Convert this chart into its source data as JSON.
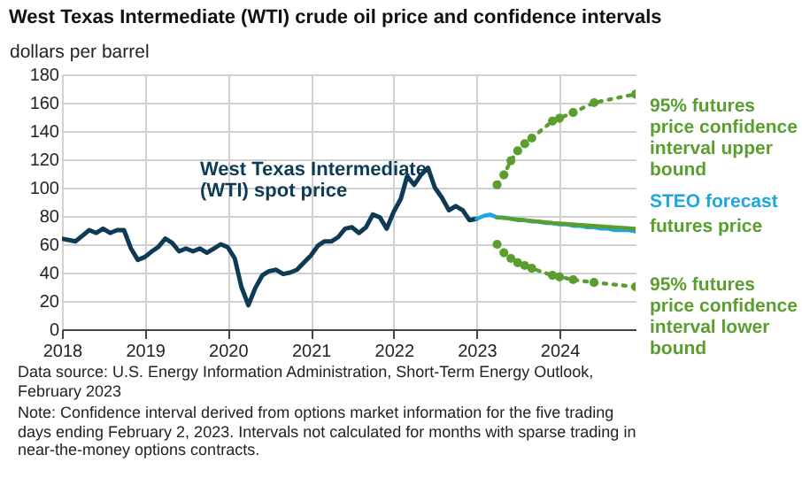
{
  "chart_data": {
    "type": "line",
    "title": "West Texas Intermediate (WTI) crude oil price and confidence intervals",
    "ylabel": "dollars per barrel",
    "xlim": [
      "2018-01",
      "2024-12"
    ],
    "xticks": [
      "2018",
      "2019",
      "2020",
      "2021",
      "2022",
      "2023",
      "2024"
    ],
    "ylim": [
      0,
      180
    ],
    "yticks": [
      0,
      20,
      40,
      60,
      80,
      100,
      120,
      140,
      160,
      180
    ],
    "grid": true,
    "series": [
      {
        "name": "West Texas Intermediate (WTI) spot price",
        "color": "#0d3b55",
        "x": [
          "2018-01",
          "2018-02",
          "2018-03",
          "2018-04",
          "2018-05",
          "2018-06",
          "2018-07",
          "2018-08",
          "2018-09",
          "2018-10",
          "2018-11",
          "2018-12",
          "2019-01",
          "2019-02",
          "2019-03",
          "2019-04",
          "2019-05",
          "2019-06",
          "2019-07",
          "2019-08",
          "2019-09",
          "2019-10",
          "2019-11",
          "2019-12",
          "2020-01",
          "2020-02",
          "2020-03",
          "2020-04",
          "2020-05",
          "2020-06",
          "2020-07",
          "2020-08",
          "2020-09",
          "2020-10",
          "2020-11",
          "2020-12",
          "2021-01",
          "2021-02",
          "2021-03",
          "2021-04",
          "2021-05",
          "2021-06",
          "2021-07",
          "2021-08",
          "2021-09",
          "2021-10",
          "2021-11",
          "2021-12",
          "2022-01",
          "2022-02",
          "2022-03",
          "2022-04",
          "2022-05",
          "2022-06",
          "2022-07",
          "2022-08",
          "2022-09",
          "2022-10",
          "2022-11",
          "2022-12",
          "2023-01"
        ],
        "values": [
          64,
          63,
          62,
          66,
          70,
          68,
          71,
          68,
          70,
          70,
          57,
          49,
          51,
          55,
          58,
          64,
          61,
          55,
          57,
          55,
          57,
          54,
          57,
          60,
          58,
          50,
          30,
          17,
          29,
          38,
          41,
          42,
          39,
          40,
          42,
          47,
          52,
          59,
          62,
          62,
          65,
          71,
          72,
          68,
          72,
          81,
          79,
          71,
          83,
          92,
          108,
          102,
          109,
          114,
          100,
          93,
          84,
          87,
          84,
          77,
          78
        ]
      },
      {
        "name": "STEO forecast",
        "color": "#1ca7e0",
        "x": [
          "2023-01",
          "2023-02",
          "2023-03",
          "2023-04",
          "2023-05",
          "2023-06",
          "2023-07",
          "2023-08",
          "2023-09",
          "2023-10",
          "2023-11",
          "2023-12",
          "2024-01",
          "2024-02",
          "2024-03",
          "2024-04",
          "2024-05",
          "2024-06",
          "2024-07",
          "2024-08",
          "2024-09",
          "2024-10",
          "2024-11",
          "2024-12"
        ],
        "values": [
          78,
          80,
          81,
          79,
          79,
          78,
          77,
          77,
          76,
          76,
          75,
          75,
          74,
          74,
          73,
          73,
          72,
          72,
          71,
          71,
          70,
          70,
          70,
          69
        ]
      },
      {
        "name": "futures price",
        "color": "#5a9e2f",
        "x": [
          "2023-04",
          "2023-12",
          "2024-06",
          "2024-12"
        ],
        "values": [
          79,
          75,
          73,
          71
        ]
      },
      {
        "name": "95% futures price confidence interval upper bound",
        "color": "#5a9e2f",
        "marker": "circle",
        "line_style": "dotted",
        "x": [
          "2023-04",
          "2023-05",
          "2023-06",
          "2023-07",
          "2023-08",
          "2023-09",
          "2023-12",
          "2024-01",
          "2024-03",
          "2024-06",
          "2024-12"
        ],
        "values": [
          102,
          109,
          119,
          126,
          131,
          135,
          147,
          149,
          153,
          160,
          166
        ]
      },
      {
        "name": "95% futures price confidence interval lower bound",
        "color": "#5a9e2f",
        "marker": "circle",
        "line_style": "dotted",
        "x": [
          "2023-04",
          "2023-05",
          "2023-06",
          "2023-07",
          "2023-08",
          "2023-09",
          "2023-12",
          "2024-01",
          "2024-03",
          "2024-06",
          "2024-12"
        ],
        "values": [
          60,
          54,
          50,
          47,
          45,
          43,
          38,
          37,
          35,
          33,
          30
        ]
      }
    ],
    "annotations": [
      "Data source: U.S. Energy Information Administration, Short-Term Energy Outlook, February 2023",
      "Note: Confidence interval derived from options market information for the five trading days ending February 2, 2023. Intervals not calculated for months with sparse trading in near-the-money options contracts."
    ]
  }
}
